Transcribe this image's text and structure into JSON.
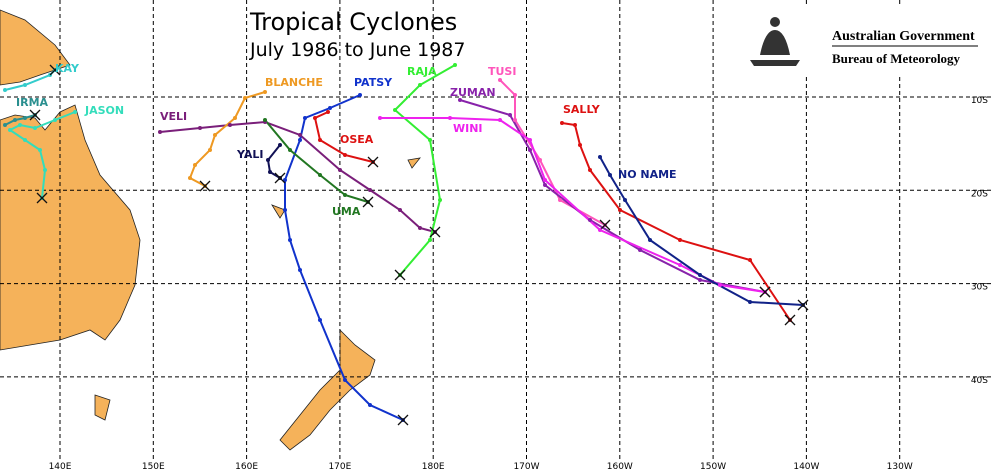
{
  "title": "Tropical Cyclones",
  "subtitle": "July 1986 to June 1987",
  "logo": {
    "line1": "Australian Government",
    "line2": "Bureau of Meteorology"
  },
  "cyclones": [
    {
      "name": "KAY",
      "color": "#33cccc"
    },
    {
      "name": "IRMA",
      "color": "#2a8f8f"
    },
    {
      "name": "JASON",
      "color": "#33ddbb"
    },
    {
      "name": "VELI",
      "color": "#7a1f7a"
    },
    {
      "name": "BLANCHE",
      "color": "#ee9922"
    },
    {
      "name": "PATSY",
      "color": "#1133cc"
    },
    {
      "name": "YALI",
      "color": "#111155"
    },
    {
      "name": "UMA",
      "color": "#227722"
    },
    {
      "name": "OSEA",
      "color": "#dd1111"
    },
    {
      "name": "RAJA",
      "color": "#33ee33"
    },
    {
      "name": "TUSI",
      "color": "#ff55bb"
    },
    {
      "name": "ZUMAN",
      "color": "#8822aa"
    },
    {
      "name": "WINI",
      "color": "#ee22ee"
    },
    {
      "name": "SALLY",
      "color": "#dd1111"
    },
    {
      "name": "NO NAME",
      "color": "#112288"
    }
  ],
  "longitudes": [
    "140E",
    "150E",
    "160E",
    "170E",
    "180E",
    "170W",
    "160W",
    "150W",
    "140W",
    "130W"
  ],
  "latitudes": [
    "10S",
    "20S",
    "30S",
    "40S"
  ]
}
